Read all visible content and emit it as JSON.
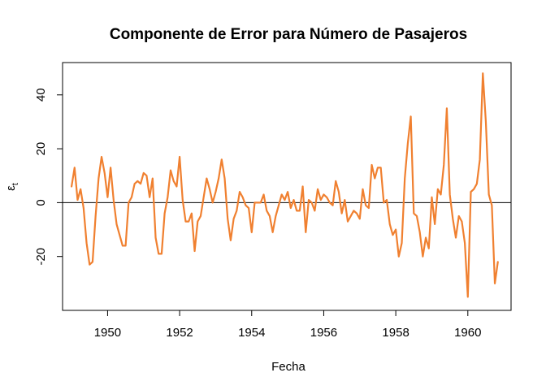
{
  "chart_data": {
    "type": "line",
    "title": "Componente de Error para Número de Pasajeros",
    "xlabel": "Fecha",
    "ylabel": "εt",
    "ylabel_main": "ε",
    "ylabel_sub": "t",
    "xlim": [
      1948.75,
      1961.2
    ],
    "ylim": [
      -40,
      52
    ],
    "x_ticks": [
      1950,
      1952,
      1954,
      1956,
      1958,
      1960
    ],
    "x_tick_labels": [
      "1950",
      "1952",
      "1954",
      "1956",
      "1958",
      "1960"
    ],
    "y_ticks": [
      -20,
      0,
      20,
      40
    ],
    "y_tick_labels": [
      "-20",
      "0",
      "20",
      "40"
    ],
    "grid": false,
    "reference_line_y": 0,
    "series_color": "#F08030",
    "series": [
      {
        "start": 1949.0,
        "step": 0.083333,
        "values": [
          6,
          13,
          1,
          5,
          -2,
          -15,
          -23,
          -22,
          -5,
          9,
          17,
          11,
          2,
          13,
          1,
          -8,
          -12,
          -16,
          -16,
          0,
          2,
          7,
          8,
          7,
          11,
          10,
          2,
          9,
          -13,
          -19,
          -19,
          -4,
          2,
          12,
          8,
          6,
          17,
          1,
          -7,
          -7,
          -4,
          -18,
          -7,
          -5,
          2,
          9,
          5,
          0,
          4,
          9,
          16,
          9,
          -6,
          -14,
          -6,
          -3,
          4,
          2,
          -1,
          -2,
          -11,
          0,
          0,
          0,
          3,
          -3,
          -5,
          -11,
          -5,
          -1,
          3,
          1,
          4,
          -2,
          1,
          -3,
          -3,
          6,
          -11,
          1,
          0,
          -3,
          5,
          1,
          3,
          2,
          0,
          -1,
          8,
          4,
          -4,
          1,
          -7,
          -5,
          -3,
          -4,
          -6,
          5,
          -1,
          -2,
          14,
          9,
          13,
          13,
          0,
          1,
          -8,
          -12,
          -10,
          -20,
          -15,
          9,
          22,
          32,
          -4,
          -5,
          -11,
          -20,
          -13,
          -17,
          2,
          -8,
          5,
          3,
          14,
          35,
          3,
          -6,
          -13,
          -5,
          -7,
          -15,
          -35,
          4,
          5,
          7,
          16,
          48,
          30,
          3,
          -1,
          -30,
          -22
        ]
      }
    ]
  }
}
